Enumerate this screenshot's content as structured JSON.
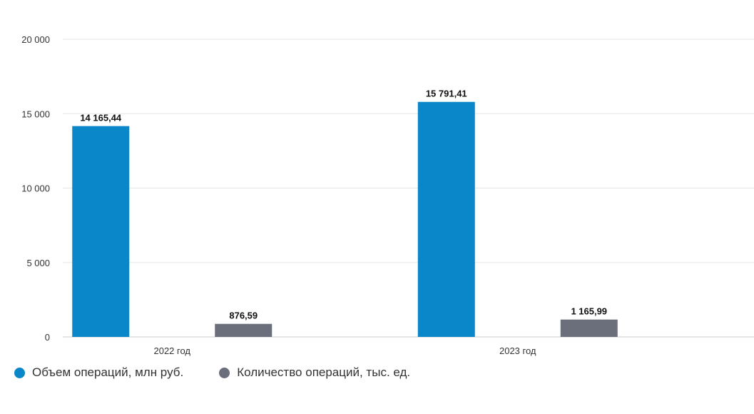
{
  "chart_data": {
    "type": "bar",
    "categories": [
      "2022 год",
      "2023 год"
    ],
    "series": [
      {
        "name": "Объем операций, млн руб.",
        "values": [
          14165.44,
          15791.41
        ],
        "labels": [
          "14 165,44",
          "15 791,41"
        ],
        "color": "#0a87c8"
      },
      {
        "name": "Количество операций, тыс. ед.",
        "values": [
          876.59,
          1165.99
        ],
        "labels": [
          "876,59",
          "1 165,99"
        ],
        "color": "#6b6f7b"
      }
    ],
    "ylim": [
      0,
      20000
    ],
    "yticks": [
      0,
      5000,
      10000,
      15000,
      20000
    ],
    "ytick_labels": [
      "0",
      "5 000",
      "10 000",
      "15 000",
      "20 000"
    ],
    "grid": true,
    "legend": "bottom-left",
    "colors": {
      "grid": "#e6e6e6",
      "axis": "#cccccc"
    }
  }
}
